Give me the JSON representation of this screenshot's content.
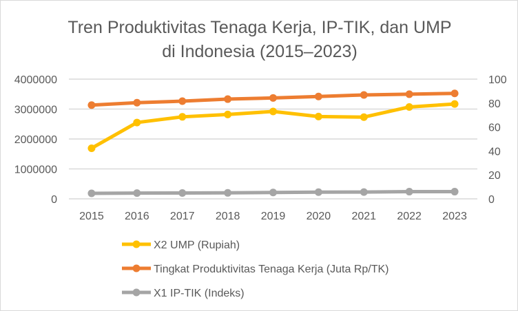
{
  "chart_data": {
    "type": "line",
    "title": [
      "Tren Produktivitas Tenaga Kerja, IP-TIK, dan UMP",
      "di Indonesia (2015–2023)"
    ],
    "categories": [
      "2015",
      "2016",
      "2017",
      "2018",
      "2019",
      "2020",
      "2021",
      "2022",
      "2023"
    ],
    "y_left": {
      "ylim": [
        0,
        4000000
      ],
      "ticks": [
        "0",
        "1000000",
        "2000000",
        "3000000",
        "4000000"
      ]
    },
    "y_right": {
      "ylim": [
        0,
        100
      ],
      "ticks": [
        "0",
        "20",
        "40",
        "60",
        "80",
        "100"
      ]
    },
    "grid": true,
    "legend_position": "bottom",
    "series": [
      {
        "name": "X2 UMP (Rupiah)",
        "axis": "left",
        "color": "#FFC000",
        "values": [
          1690000,
          2550000,
          2740000,
          2820000,
          2920000,
          2750000,
          2730000,
          3070000,
          3170000
        ]
      },
      {
        "name": "Tingkat Produktivitas Tenaga Kerja (Juta Rp/TK)",
        "axis": "right",
        "color": "#ED7D31",
        "values": [
          78.3,
          80.3,
          81.6,
          83.3,
          84.3,
          85.5,
          86.8,
          87.4,
          88.1
        ]
      },
      {
        "name": "X1 IP-TIK (Indeks)",
        "axis": "right",
        "color": "#A5A5A5",
        "values": [
          4.6,
          4.8,
          4.9,
          5.0,
          5.3,
          5.6,
          5.7,
          6.0,
          6.0
        ]
      }
    ]
  }
}
